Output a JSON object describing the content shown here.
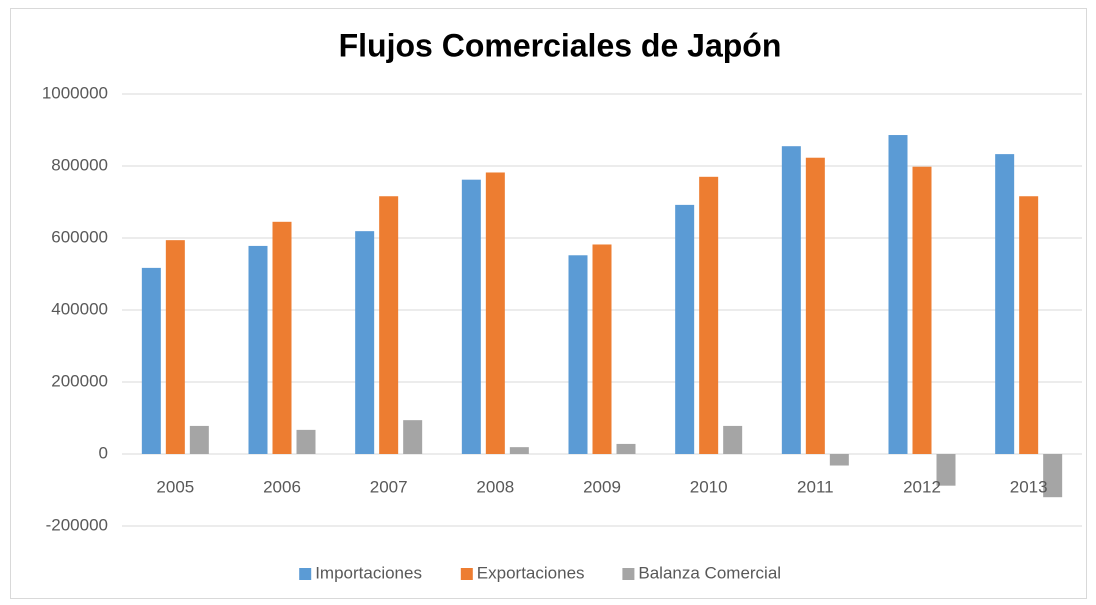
{
  "chart_data": {
    "type": "bar",
    "title": "Flujos Comerciales de Japón",
    "categories": [
      "2005",
      "2006",
      "2007",
      "2008",
      "2009",
      "2010",
      "2011",
      "2012",
      "2013"
    ],
    "series": [
      {
        "name": "Importaciones",
        "color": "#5b9bd5",
        "values": [
          517000,
          578000,
          619000,
          762000,
          552000,
          692000,
          855000,
          886000,
          833000
        ]
      },
      {
        "name": "Exportaciones",
        "color": "#ed7d31",
        "values": [
          594000,
          645000,
          716000,
          782000,
          582000,
          770000,
          823000,
          798000,
          716000
        ]
      },
      {
        "name": "Balanza Comercial",
        "color": "#a5a5a5",
        "values": [
          78000,
          67000,
          94000,
          19000,
          28000,
          78000,
          -32000,
          -88000,
          -120000
        ]
      }
    ],
    "ylim": [
      -200000,
      1000000
    ],
    "yticks": [
      -200000,
      0,
      200000,
      400000,
      600000,
      800000,
      1000000
    ],
    "grid": true,
    "legend": "bottom"
  }
}
